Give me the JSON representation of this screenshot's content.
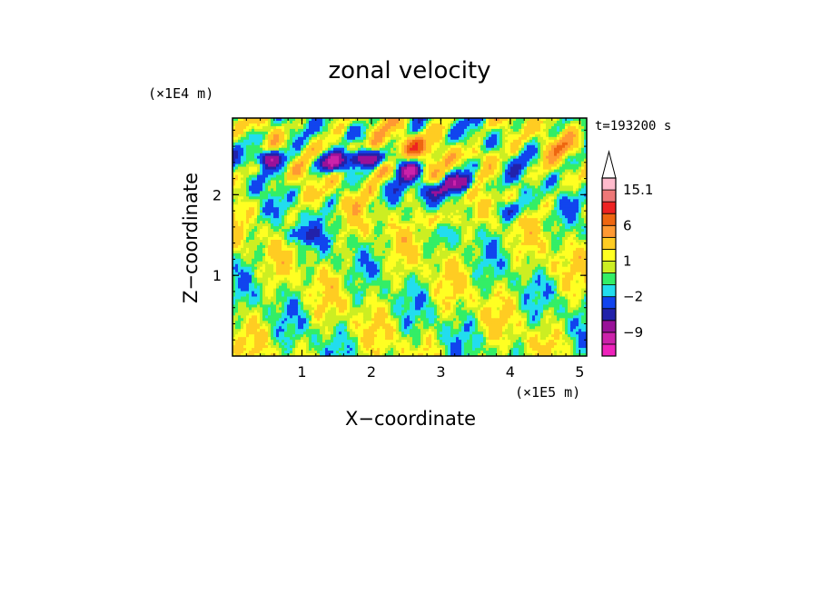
{
  "chart_data": {
    "type": "heatmap",
    "title": "zonal velocity",
    "time_label": "t=193200 s",
    "xlabel": "X−coordinate",
    "ylabel": "Z−coordinate",
    "x_unit": "(×1E5 m)",
    "y_unit": "(×1E4 m)",
    "xlim": [
      0,
      5.1
    ],
    "ylim": [
      0,
      2.95
    ],
    "x_ticks": [
      1,
      2,
      3,
      4,
      5
    ],
    "x_tick_labels": [
      "1",
      "2",
      "3",
      "4",
      "5"
    ],
    "y_ticks": [
      1,
      2
    ],
    "y_tick_labels": [
      "1",
      "2"
    ],
    "colorbar": {
      "levels": [
        -15.1,
        -12,
        -9,
        -6,
        -4,
        -2,
        -1,
        0,
        1,
        2,
        4,
        6,
        9,
        12,
        15.1
      ],
      "colors": [
        "#ee22bb",
        "#cc22aa",
        "#991199",
        "#2222aa",
        "#1144ee",
        "#22ddee",
        "#33ee66",
        "#ccee22",
        "#ffff22",
        "#ffcc22",
        "#ff9933",
        "#ee6611",
        "#ee2222",
        "#ee7777",
        "#ffbbcc"
      ],
      "extend_max_color": "#ffffff",
      "label_values": [
        15.1,
        6,
        1,
        -2,
        -9
      ],
      "labels": [
        "15.1",
        "6",
        "1",
        "−2",
        "−9"
      ]
    },
    "field_samples": {
      "note_values": "zonal velocity (data units) at sampled (x, z) locations",
      "points": [
        {
          "x": 0.5,
          "z": 2.45,
          "v": -9
        },
        {
          "x": 1.4,
          "z": 2.4,
          "v": -9
        },
        {
          "x": 1.9,
          "z": 2.45,
          "v": -9
        },
        {
          "x": 2.5,
          "z": 2.3,
          "v": -9
        },
        {
          "x": 3.3,
          "z": 2.15,
          "v": -9
        },
        {
          "x": 2.9,
          "z": 2.05,
          "v": -6
        },
        {
          "x": 4.0,
          "z": 1.8,
          "v": -4
        },
        {
          "x": 2.6,
          "z": 2.6,
          "v": 6
        },
        {
          "x": 3.5,
          "z": 2.5,
          "v": 4
        },
        {
          "x": 1.7,
          "z": 2.6,
          "v": 4
        },
        {
          "x": 2.2,
          "z": 2.3,
          "v": 6
        },
        {
          "x": 3.0,
          "z": 1.7,
          "v": 4
        },
        {
          "x": 1.0,
          "z": 1.5,
          "v": -4
        },
        {
          "x": 0.3,
          "z": 2.7,
          "v": -2
        },
        {
          "x": 1.0,
          "z": 0.8,
          "v": 0
        },
        {
          "x": 2.0,
          "z": 0.9,
          "v": 1
        },
        {
          "x": 3.5,
          "z": 0.6,
          "v": 0
        },
        {
          "x": 4.5,
          "z": 1.1,
          "v": 1
        },
        {
          "x": 4.8,
          "z": 2.6,
          "v": 2
        }
      ]
    }
  }
}
